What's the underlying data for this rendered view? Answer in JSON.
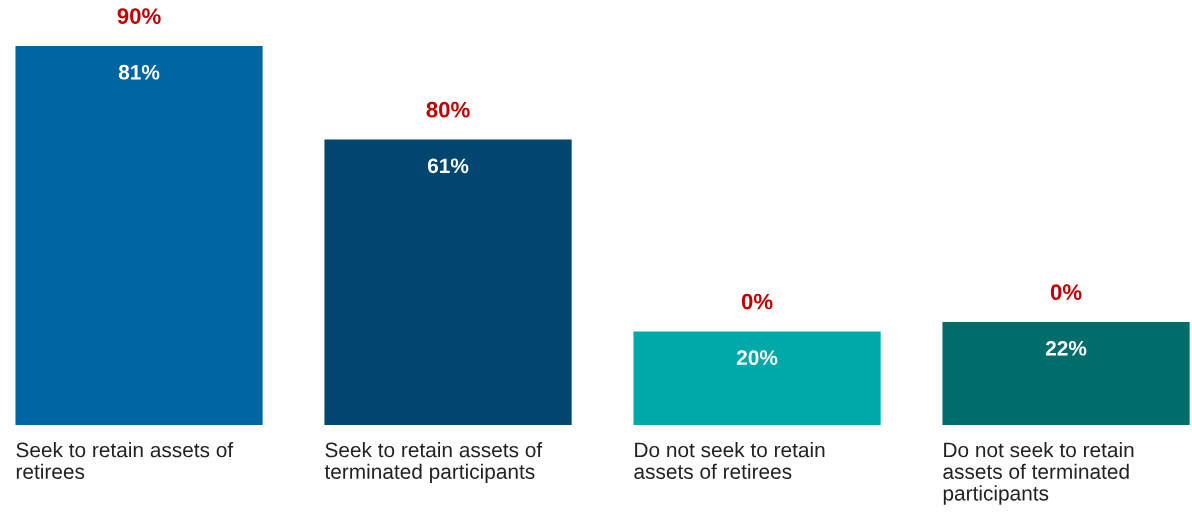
{
  "chart_data": {
    "type": "bar",
    "categories": [
      "Seek to retain assets of retirees",
      "Seek to retain assets of terminated participants",
      "Do not seek to retain assets of retirees",
      "Do not seek to retain assets of terminated participants"
    ],
    "values": [
      81,
      61,
      20,
      22
    ],
    "colors": [
      "#0066a1",
      "#00466e",
      "#00a9a9",
      "#006d6b"
    ],
    "value_labels": [
      "81%",
      "61%",
      "20%",
      "22%"
    ],
    "annotations": [
      {
        "text": "90%",
        "x": "Seek to retain assets of retirees",
        "y": 81
      },
      {
        "text": "80%",
        "x": "Seek to retain assets of terminated participants",
        "y": 61
      },
      {
        "text": "0%",
        "x": "Do not seek to retain assets of retirees",
        "y": 20
      },
      {
        "text": "0%",
        "x": "Do not seek to retain assets of terminated participants",
        "y": 22
      }
    ],
    "legend": false
  }
}
